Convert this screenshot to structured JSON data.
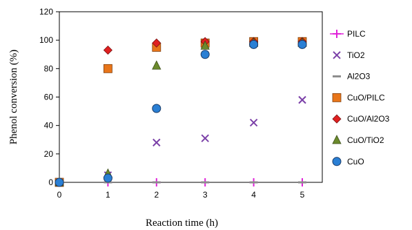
{
  "chart_data": {
    "type": "scatter",
    "title": "",
    "xlabel": "Reaction time (h)",
    "ylabel": "Phenol conversion  (%)",
    "xlim": [
      0,
      5
    ],
    "ylim": [
      0,
      120
    ],
    "xticks": [
      "0",
      "1",
      "2",
      "3",
      "4",
      "5"
    ],
    "yticks": [
      "0",
      "20",
      "40",
      "60",
      "80",
      "100",
      "120"
    ],
    "grid": false,
    "legend_position": "right",
    "series": [
      {
        "name": "PILC",
        "marker": "plus",
        "color": "#e020d8",
        "points": [
          [
            0,
            0
          ],
          [
            1,
            0
          ],
          [
            2,
            0
          ],
          [
            3,
            0
          ],
          [
            4,
            0
          ],
          [
            5,
            0
          ]
        ]
      },
      {
        "name": "TiO2",
        "marker": "x",
        "color": "#7b40a8",
        "points": [
          [
            0,
            0
          ],
          [
            1,
            5
          ],
          [
            2,
            28
          ],
          [
            3,
            31
          ],
          [
            4,
            42
          ],
          [
            5,
            58
          ]
        ]
      },
      {
        "name": "Al2O3",
        "marker": "dash",
        "color": "#8c8c8c",
        "points": [
          [
            0,
            0
          ],
          [
            1,
            0
          ],
          [
            2,
            0
          ],
          [
            3,
            0
          ],
          [
            4,
            0
          ],
          [
            5,
            0
          ]
        ]
      },
      {
        "name": "CuO/PILC",
        "marker": "square",
        "color": "#e8751a",
        "points": [
          [
            0,
            0
          ],
          [
            1,
            80
          ],
          [
            2,
            95
          ],
          [
            3,
            98
          ],
          [
            4,
            99
          ],
          [
            5,
            99
          ]
        ]
      },
      {
        "name": "CuO/Al2O3",
        "marker": "diamond",
        "color": "#e02020",
        "points": [
          [
            0,
            0
          ],
          [
            1,
            93
          ],
          [
            2,
            98
          ],
          [
            3,
            99
          ],
          [
            4,
            99
          ],
          [
            5,
            99
          ]
        ]
      },
      {
        "name": "CuO/TiO2",
        "marker": "triangle",
        "color": "#6b8a2c",
        "points": [
          [
            0,
            0
          ],
          [
            1,
            6
          ],
          [
            2,
            82
          ],
          [
            3,
            96
          ],
          [
            4,
            98
          ],
          [
            5,
            98
          ]
        ]
      },
      {
        "name": "CuO",
        "marker": "circle",
        "color": "#2a7fd4",
        "points": [
          [
            0,
            0
          ],
          [
            1,
            3
          ],
          [
            2,
            52
          ],
          [
            3,
            90
          ],
          [
            4,
            97
          ],
          [
            5,
            97
          ]
        ]
      }
    ]
  }
}
